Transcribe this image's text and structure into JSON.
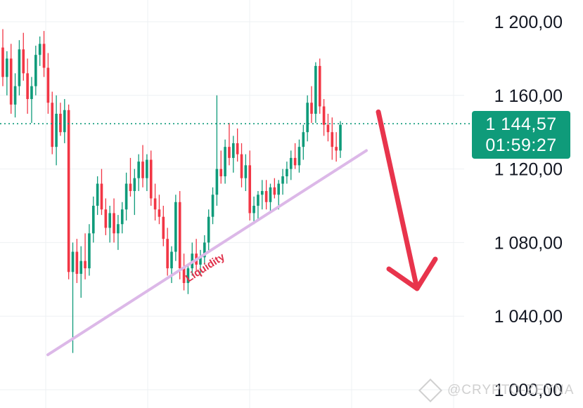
{
  "chart_data": {
    "type": "candlestick",
    "yticks": [
      "1 200,00",
      "1 160,00",
      "1 120,00",
      "1 080,00",
      "1 040,00",
      "1 000,00"
    ],
    "ytick_values": [
      1200,
      1160,
      1120,
      1080,
      1040,
      1000
    ],
    "ylim": [
      995,
      1213
    ],
    "grid": true,
    "colors": {
      "up": "#0f9b7a",
      "down": "#f23645",
      "trendline": "#dcb8e8",
      "arrow": "#e8344c",
      "current_price_line": "#0f9b7a"
    },
    "current_price": {
      "value": 1144.57,
      "label": "1 144,57",
      "countdown": "01:59:27"
    },
    "annotations": [
      {
        "text": "Liquidity",
        "color": "#e0304a"
      }
    ],
    "trendline": {
      "from_price": 1019,
      "to_price": 1130
    },
    "arrow": {
      "direction": "down",
      "from_price": 1151,
      "to_price": 1055
    },
    "candles": [
      [
        1186,
        1196,
        1165,
        1170
      ],
      [
        1170,
        1184,
        1160,
        1180
      ],
      [
        1180,
        1188,
        1150,
        1155
      ],
      [
        1155,
        1172,
        1148,
        1165
      ],
      [
        1165,
        1190,
        1160,
        1185
      ],
      [
        1185,
        1194,
        1168,
        1172
      ],
      [
        1172,
        1180,
        1150,
        1158
      ],
      [
        1158,
        1170,
        1145,
        1165
      ],
      [
        1165,
        1187,
        1160,
        1182
      ],
      [
        1182,
        1192,
        1176,
        1188
      ],
      [
        1188,
        1195,
        1170,
        1175
      ],
      [
        1175,
        1183,
        1150,
        1156
      ],
      [
        1156,
        1162,
        1128,
        1132
      ],
      [
        1132,
        1160,
        1122,
        1150
      ],
      [
        1150,
        1156,
        1138,
        1140
      ],
      [
        1140,
        1158,
        1134,
        1152
      ],
      [
        1152,
        1155,
        1060,
        1064
      ],
      [
        1064,
        1080,
        1020,
        1075
      ],
      [
        1075,
        1082,
        1058,
        1063
      ],
      [
        1063,
        1078,
        1050,
        1070
      ],
      [
        1070,
        1085,
        1060,
        1066
      ],
      [
        1066,
        1090,
        1062,
        1085
      ],
      [
        1085,
        1105,
        1080,
        1100
      ],
      [
        1100,
        1116,
        1095,
        1112
      ],
      [
        1112,
        1120,
        1095,
        1098
      ],
      [
        1098,
        1104,
        1084,
        1088
      ],
      [
        1088,
        1100,
        1080,
        1096
      ],
      [
        1096,
        1104,
        1080,
        1085
      ],
      [
        1085,
        1095,
        1076,
        1090
      ],
      [
        1090,
        1102,
        1085,
        1098
      ],
      [
        1098,
        1118,
        1092,
        1112
      ],
      [
        1112,
        1126,
        1105,
        1108
      ],
      [
        1108,
        1120,
        1095,
        1115
      ],
      [
        1115,
        1128,
        1108,
        1124
      ],
      [
        1124,
        1133,
        1110,
        1115
      ],
      [
        1115,
        1128,
        1108,
        1125
      ],
      [
        1125,
        1130,
        1100,
        1104
      ],
      [
        1104,
        1112,
        1092,
        1098
      ],
      [
        1098,
        1106,
        1090,
        1094
      ],
      [
        1094,
        1100,
        1078,
        1082
      ],
      [
        1082,
        1088,
        1062,
        1066
      ],
      [
        1066,
        1078,
        1058,
        1075
      ],
      [
        1075,
        1106,
        1070,
        1102
      ],
      [
        1102,
        1108,
        1060,
        1066
      ],
      [
        1066,
        1074,
        1054,
        1058
      ],
      [
        1058,
        1068,
        1052,
        1066
      ],
      [
        1066,
        1080,
        1062,
        1074
      ],
      [
        1074,
        1082,
        1064,
        1068
      ],
      [
        1068,
        1076,
        1062,
        1072
      ],
      [
        1072,
        1084,
        1068,
        1080
      ],
      [
        1080,
        1098,
        1075,
        1094
      ],
      [
        1094,
        1110,
        1090,
        1106
      ],
      [
        1106,
        1160,
        1100,
        1120
      ],
      [
        1120,
        1130,
        1112,
        1116
      ],
      [
        1116,
        1136,
        1112,
        1132
      ],
      [
        1132,
        1145,
        1122,
        1126
      ],
      [
        1126,
        1138,
        1118,
        1134
      ],
      [
        1134,
        1142,
        1124,
        1128
      ],
      [
        1128,
        1134,
        1110,
        1115
      ],
      [
        1115,
        1128,
        1108,
        1122
      ],
      [
        1122,
        1130,
        1092,
        1096
      ],
      [
        1096,
        1105,
        1090,
        1100
      ],
      [
        1100,
        1108,
        1092,
        1106
      ],
      [
        1106,
        1114,
        1098,
        1108
      ],
      [
        1108,
        1114,
        1098,
        1102
      ],
      [
        1102,
        1112,
        1096,
        1110
      ],
      [
        1110,
        1115,
        1104,
        1106
      ],
      [
        1106,
        1114,
        1098,
        1112
      ],
      [
        1112,
        1120,
        1106,
        1116
      ],
      [
        1116,
        1124,
        1112,
        1120
      ],
      [
        1120,
        1130,
        1114,
        1126
      ],
      [
        1126,
        1134,
        1120,
        1122
      ],
      [
        1122,
        1136,
        1118,
        1132
      ],
      [
        1132,
        1144,
        1125,
        1140
      ],
      [
        1140,
        1160,
        1135,
        1156
      ],
      [
        1156,
        1165,
        1145,
        1150
      ],
      [
        1150,
        1178,
        1145,
        1176
      ],
      [
        1176,
        1180,
        1150,
        1154
      ],
      [
        1154,
        1158,
        1138,
        1144
      ],
      [
        1144,
        1150,
        1135,
        1140
      ],
      [
        1140,
        1148,
        1125,
        1132
      ],
      [
        1132,
        1140,
        1124,
        1130
      ],
      [
        1130,
        1146,
        1126,
        1144
      ]
    ]
  },
  "watermark": "@CRYPTO-ZEYNA"
}
